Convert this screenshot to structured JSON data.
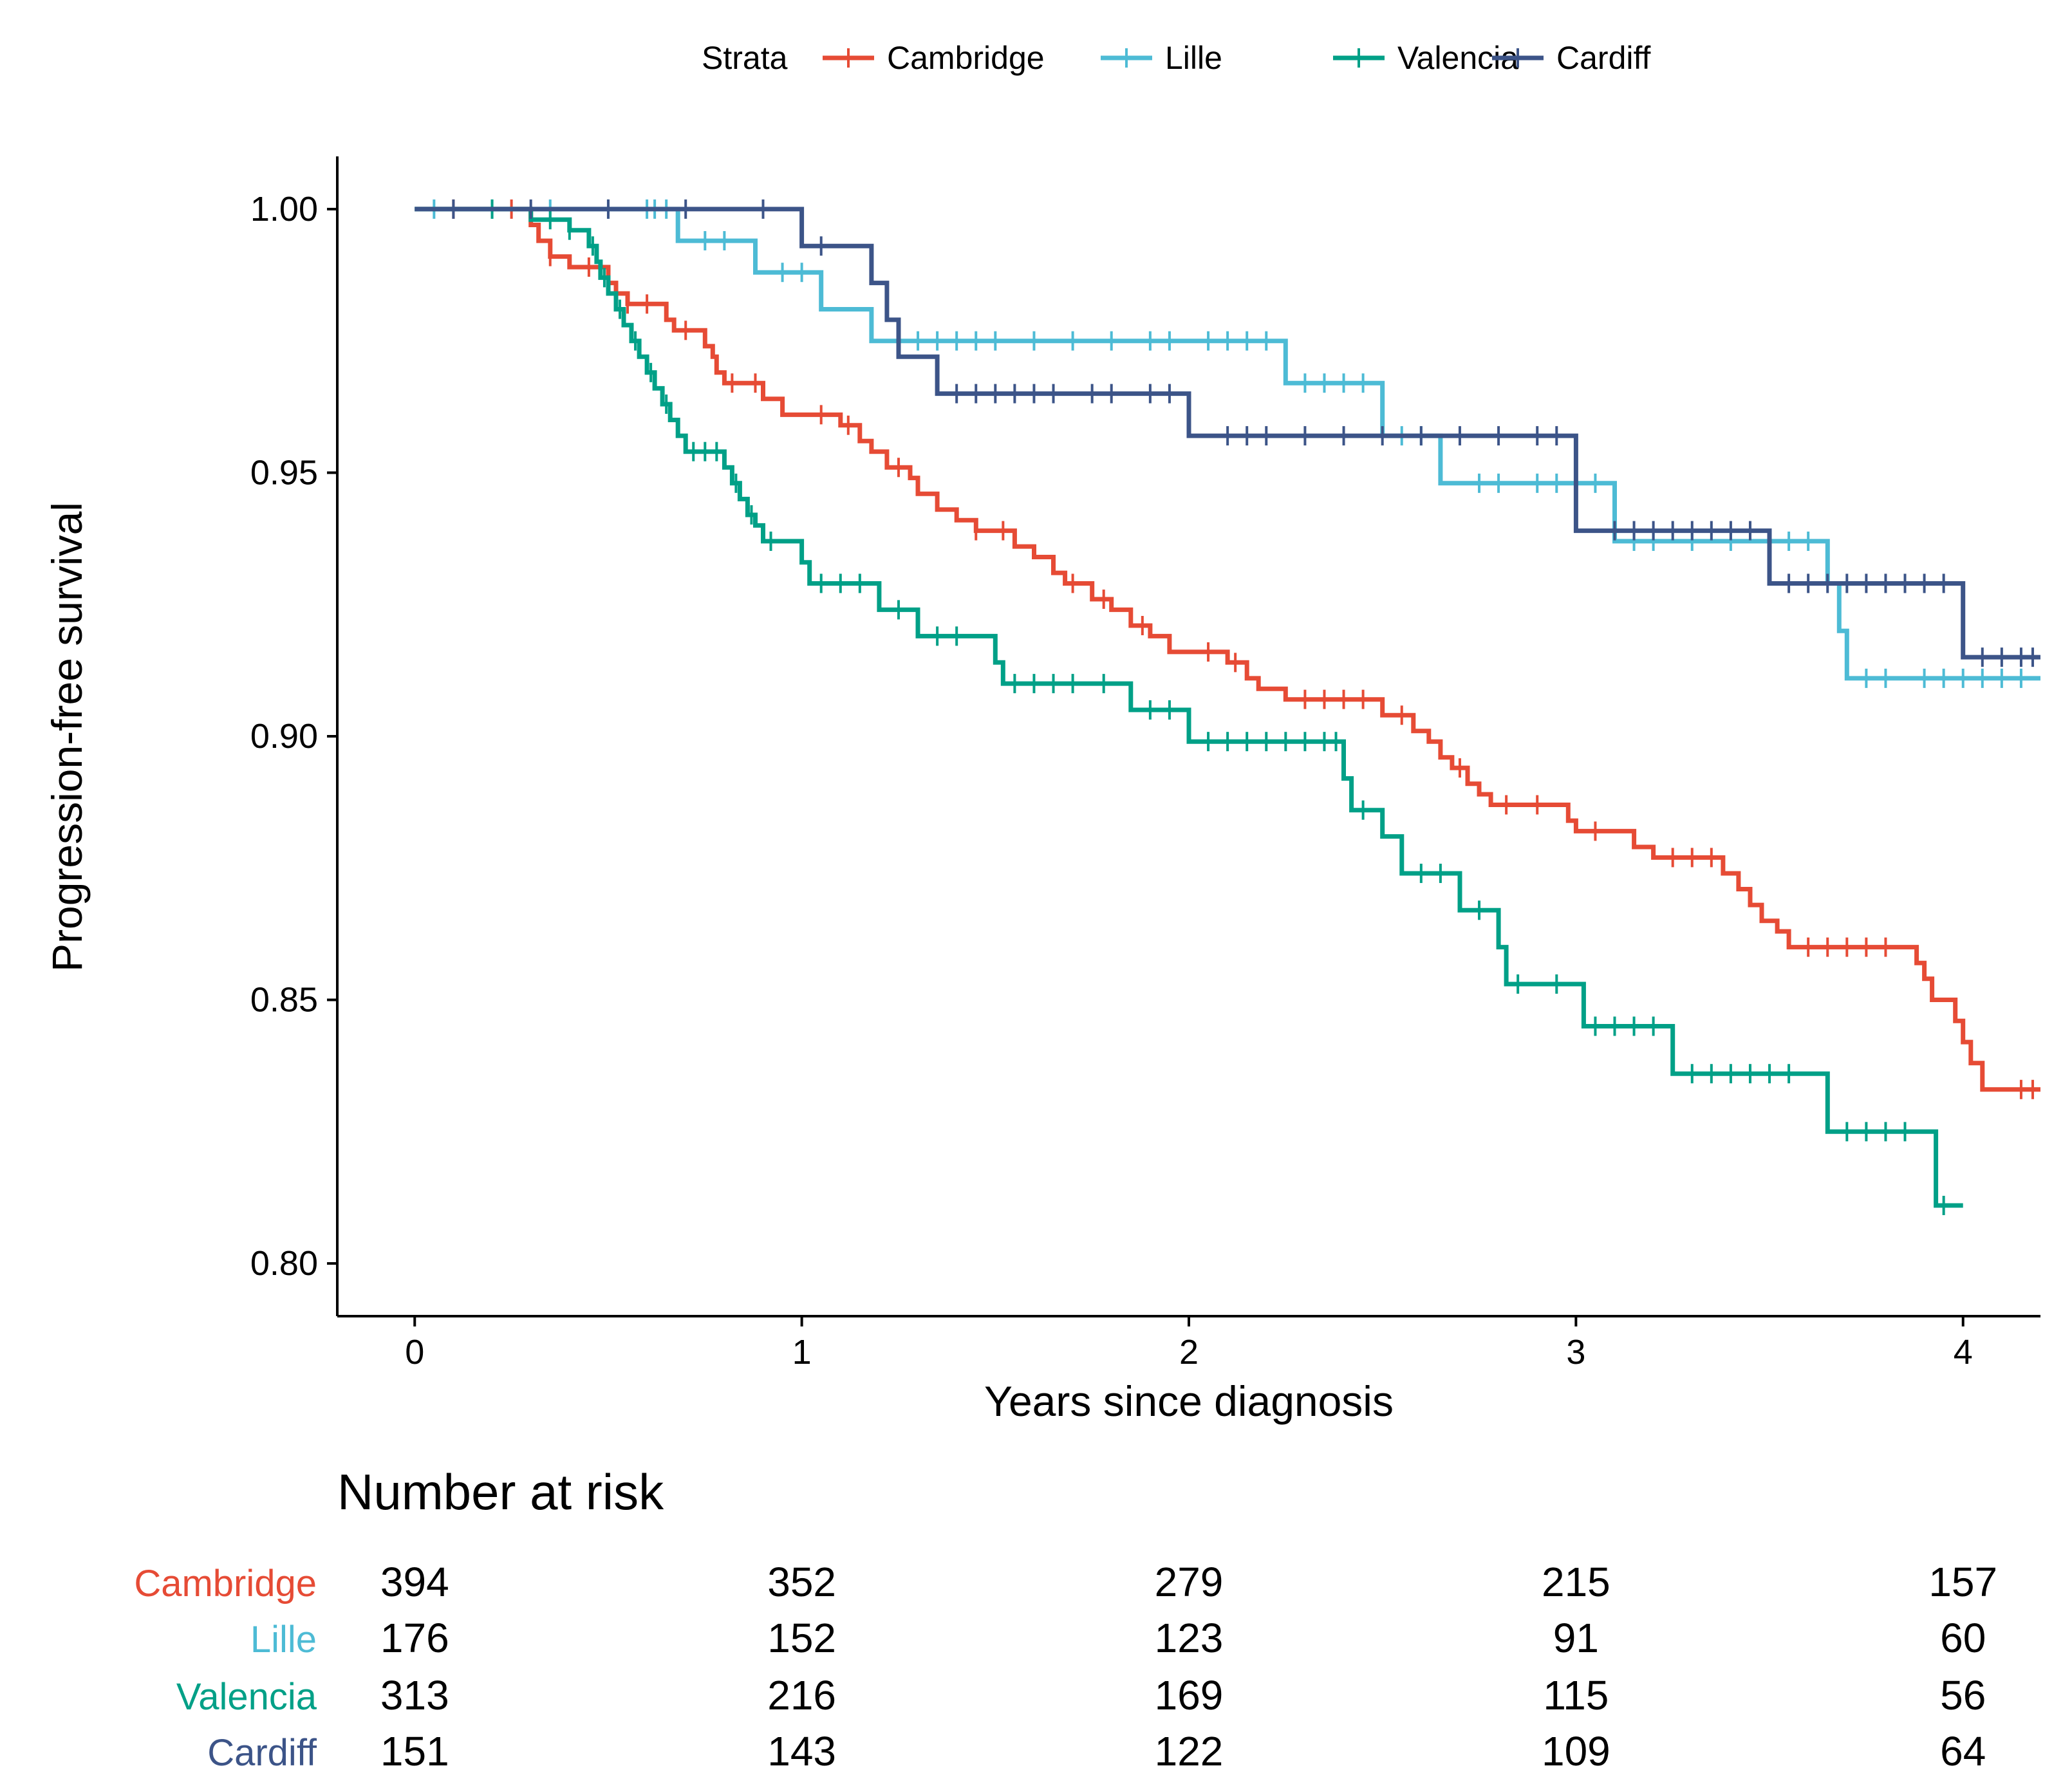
{
  "chart_data": {
    "type": "line",
    "subtype": "kaplan-meier step",
    "title": "",
    "xlabel": "Years since diagnosis",
    "ylabel": "Progression-free survival",
    "xlim": [
      -0.2,
      4.2
    ],
    "ylim": [
      0.79,
      1.01
    ],
    "xticks": [
      0,
      1,
      2,
      3,
      4
    ],
    "xtick_labels": [
      "0",
      "1",
      "2",
      "3",
      "4"
    ],
    "yticks": [
      0.8,
      0.85,
      0.9,
      0.95,
      1.0
    ],
    "ytick_labels": [
      "0.80",
      "0.85",
      "0.90",
      "0.95",
      "1.00"
    ],
    "grid": false,
    "legend": {
      "title": "Strata",
      "position": "top",
      "entries": [
        "Cambridge",
        "Lille",
        "Valencia",
        "Cardiff"
      ]
    },
    "series": [
      {
        "name": "Cambridge",
        "color": "#E64B35",
        "steps": [
          [
            0,
            1.0
          ],
          [
            0.3,
            0.997
          ],
          [
            0.32,
            0.994
          ],
          [
            0.35,
            0.991
          ],
          [
            0.4,
            0.989
          ],
          [
            0.5,
            0.986
          ],
          [
            0.52,
            0.984
          ],
          [
            0.55,
            0.982
          ],
          [
            0.65,
            0.979
          ],
          [
            0.67,
            0.977
          ],
          [
            0.75,
            0.974
          ],
          [
            0.77,
            0.972
          ],
          [
            0.78,
            0.969
          ],
          [
            0.8,
            0.967
          ],
          [
            0.9,
            0.964
          ],
          [
            0.95,
            0.961
          ],
          [
            1.1,
            0.959
          ],
          [
            1.15,
            0.956
          ],
          [
            1.18,
            0.954
          ],
          [
            1.22,
            0.951
          ],
          [
            1.28,
            0.949
          ],
          [
            1.3,
            0.946
          ],
          [
            1.35,
            0.943
          ],
          [
            1.4,
            0.941
          ],
          [
            1.45,
            0.939
          ],
          [
            1.55,
            0.936
          ],
          [
            1.6,
            0.934
          ],
          [
            1.65,
            0.931
          ],
          [
            1.68,
            0.929
          ],
          [
            1.75,
            0.926
          ],
          [
            1.8,
            0.924
          ],
          [
            1.85,
            0.921
          ],
          [
            1.9,
            0.919
          ],
          [
            1.95,
            0.916
          ],
          [
            2.1,
            0.914
          ],
          [
            2.15,
            0.911
          ],
          [
            2.18,
            0.909
          ],
          [
            2.25,
            0.907
          ],
          [
            2.5,
            0.904
          ],
          [
            2.58,
            0.901
          ],
          [
            2.62,
            0.899
          ],
          [
            2.65,
            0.896
          ],
          [
            2.68,
            0.894
          ],
          [
            2.72,
            0.891
          ],
          [
            2.75,
            0.889
          ],
          [
            2.78,
            0.887
          ],
          [
            2.98,
            0.884
          ],
          [
            3.0,
            0.882
          ],
          [
            3.15,
            0.879
          ],
          [
            3.2,
            0.877
          ],
          [
            3.38,
            0.874
          ],
          [
            3.42,
            0.871
          ],
          [
            3.45,
            0.868
          ],
          [
            3.48,
            0.865
          ],
          [
            3.52,
            0.863
          ],
          [
            3.55,
            0.86
          ],
          [
            3.88,
            0.857
          ],
          [
            3.9,
            0.854
          ],
          [
            3.92,
            0.85
          ],
          [
            3.98,
            0.846
          ],
          [
            4.0,
            0.842
          ],
          [
            4.02,
            0.838
          ],
          [
            4.05,
            0.833
          ],
          [
            4.2,
            0.833
          ]
        ],
        "censored": [
          0.1,
          0.25,
          0.35,
          0.45,
          0.55,
          0.6,
          0.7,
          0.82,
          0.88,
          1.05,
          1.12,
          1.25,
          1.45,
          1.52,
          1.7,
          1.78,
          1.88,
          2.05,
          2.12,
          2.3,
          2.35,
          2.4,
          2.45,
          2.55,
          2.7,
          2.82,
          2.9,
          3.05,
          3.25,
          3.3,
          3.35,
          3.6,
          3.65,
          3.7,
          3.75,
          3.8,
          4.15,
          4.18
        ]
      },
      {
        "name": "Lille",
        "color": "#4DBBD5",
        "steps": [
          [
            0,
            1.0
          ],
          [
            0.68,
            0.994
          ],
          [
            0.88,
            0.988
          ],
          [
            1.05,
            0.981
          ],
          [
            1.18,
            0.975
          ],
          [
            2.25,
            0.967
          ],
          [
            2.5,
            0.957
          ],
          [
            2.65,
            0.948
          ],
          [
            3.1,
            0.937
          ],
          [
            3.35,
            0.937
          ],
          [
            3.65,
            0.929
          ],
          [
            3.68,
            0.92
          ],
          [
            3.7,
            0.911
          ],
          [
            4.2,
            0.911
          ]
        ],
        "censored": [
          0.05,
          0.2,
          0.35,
          0.5,
          0.6,
          0.62,
          0.65,
          0.75,
          0.8,
          0.95,
          1.0,
          1.3,
          1.35,
          1.4,
          1.45,
          1.5,
          1.6,
          1.7,
          1.8,
          1.9,
          1.95,
          2.05,
          2.1,
          2.15,
          2.2,
          2.3,
          2.35,
          2.4,
          2.45,
          2.55,
          2.6,
          2.75,
          2.8,
          2.9,
          2.95,
          3.05,
          3.15,
          3.2,
          3.3,
          3.4,
          3.5,
          3.55,
          3.6,
          3.75,
          3.8,
          3.9,
          3.95,
          4.0,
          4.05,
          4.1,
          4.15
        ]
      },
      {
        "name": "Valencia",
        "color": "#00A087",
        "steps": [
          [
            0,
            1.0
          ],
          [
            0.3,
            0.998
          ],
          [
            0.4,
            0.996
          ],
          [
            0.45,
            0.993
          ],
          [
            0.47,
            0.99
          ],
          [
            0.48,
            0.987
          ],
          [
            0.5,
            0.984
          ],
          [
            0.52,
            0.981
          ],
          [
            0.54,
            0.978
          ],
          [
            0.56,
            0.975
          ],
          [
            0.58,
            0.972
          ],
          [
            0.6,
            0.969
          ],
          [
            0.62,
            0.966
          ],
          [
            0.64,
            0.963
          ],
          [
            0.66,
            0.96
          ],
          [
            0.68,
            0.957
          ],
          [
            0.7,
            0.954
          ],
          [
            0.8,
            0.951
          ],
          [
            0.82,
            0.948
          ],
          [
            0.84,
            0.945
          ],
          [
            0.86,
            0.942
          ],
          [
            0.88,
            0.94
          ],
          [
            0.9,
            0.937
          ],
          [
            1.0,
            0.933
          ],
          [
            1.02,
            0.929
          ],
          [
            1.2,
            0.924
          ],
          [
            1.3,
            0.919
          ],
          [
            1.5,
            0.914
          ],
          [
            1.52,
            0.91
          ],
          [
            1.85,
            0.905
          ],
          [
            2.0,
            0.899
          ],
          [
            2.4,
            0.892
          ],
          [
            2.42,
            0.886
          ],
          [
            2.5,
            0.881
          ],
          [
            2.55,
            0.874
          ],
          [
            2.7,
            0.867
          ],
          [
            2.8,
            0.86
          ],
          [
            2.82,
            0.853
          ],
          [
            3.02,
            0.845
          ],
          [
            3.25,
            0.836
          ],
          [
            3.65,
            0.825
          ],
          [
            3.93,
            0.811
          ],
          [
            4.0,
            0.811
          ]
        ],
        "censored": [
          0.2,
          0.35,
          0.4,
          0.46,
          0.49,
          0.53,
          0.57,
          0.61,
          0.65,
          0.72,
          0.75,
          0.78,
          0.83,
          0.87,
          0.92,
          1.05,
          1.1,
          1.15,
          1.25,
          1.35,
          1.4,
          1.55,
          1.6,
          1.65,
          1.7,
          1.78,
          1.9,
          1.95,
          2.05,
          2.1,
          2.15,
          2.2,
          2.25,
          2.3,
          2.35,
          2.38,
          2.45,
          2.6,
          2.65,
          2.75,
          2.85,
          2.95,
          3.05,
          3.1,
          3.15,
          3.2,
          3.3,
          3.35,
          3.4,
          3.45,
          3.5,
          3.55,
          3.7,
          3.75,
          3.8,
          3.85,
          3.95
        ]
      },
      {
        "name": "Cardiff",
        "color": "#3C5488",
        "steps": [
          [
            0,
            1.0
          ],
          [
            1.0,
            0.993
          ],
          [
            1.18,
            0.986
          ],
          [
            1.22,
            0.979
          ],
          [
            1.25,
            0.972
          ],
          [
            1.35,
            0.965
          ],
          [
            2.0,
            0.957
          ],
          [
            3.0,
            0.939
          ],
          [
            3.5,
            0.929
          ],
          [
            4.0,
            0.915
          ],
          [
            4.2,
            0.915
          ]
        ],
        "censored": [
          0.1,
          0.3,
          0.5,
          0.7,
          0.9,
          1.05,
          1.4,
          1.45,
          1.5,
          1.55,
          1.6,
          1.65,
          1.75,
          1.8,
          1.9,
          1.95,
          2.1,
          2.15,
          2.2,
          2.3,
          2.4,
          2.5,
          2.6,
          2.7,
          2.8,
          2.9,
          2.95,
          3.1,
          3.15,
          3.2,
          3.25,
          3.3,
          3.35,
          3.4,
          3.45,
          3.55,
          3.6,
          3.65,
          3.7,
          3.75,
          3.8,
          3.85,
          3.9,
          3.95,
          4.05,
          4.1,
          4.15,
          4.18
        ]
      }
    ],
    "risk_table": {
      "title": "Number at risk",
      "times": [
        0,
        1,
        2,
        3,
        4
      ],
      "rows": [
        {
          "name": "Cambridge",
          "color": "#E64B35",
          "values": [
            "394",
            "352",
            "279",
            "215",
            "157"
          ]
        },
        {
          "name": "Lille",
          "color": "#4DBBD5",
          "values": [
            "176",
            "152",
            "123",
            "91",
            "60"
          ]
        },
        {
          "name": "Valencia",
          "color": "#00A087",
          "values": [
            "313",
            "216",
            "169",
            "115",
            "56"
          ]
        },
        {
          "name": "Cardiff",
          "color": "#3C5488",
          "values": [
            "151",
            "143",
            "122",
            "109",
            "64"
          ]
        }
      ]
    }
  }
}
